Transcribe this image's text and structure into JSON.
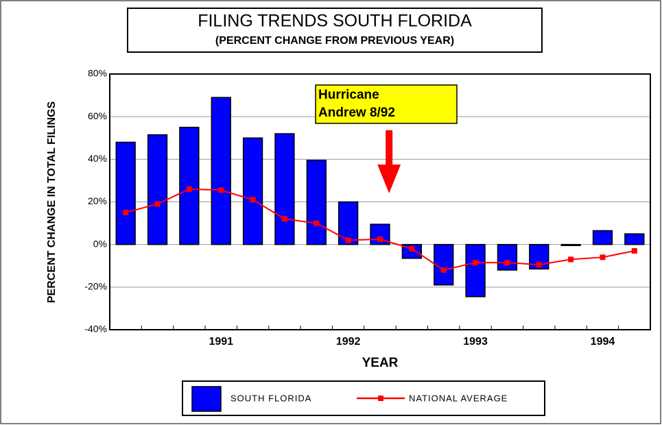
{
  "chart_data": {
    "type": "bar",
    "title": "FILING TRENDS   SOUTH FLORIDA",
    "subtitle": "(PERCENT CHANGE FROM PREVIOUS YEAR)",
    "y_label": "PERCENT CHANGE IN TOTAL FILINGS",
    "x_label": "YEAR",
    "annotation": {
      "lines": [
        "Hurricane",
        "Andrew  8/92"
      ],
      "category_index": 9
    },
    "categories": [
      null,
      null,
      null,
      "1991",
      null,
      null,
      null,
      "1992",
      null,
      null,
      null,
      "1993",
      null,
      null,
      null,
      "1994",
      null
    ],
    "series": [
      {
        "name": "SOUTH FLORIDA",
        "type": "bar",
        "color": "#0000ff",
        "values": [
          48,
          51.5,
          55,
          69,
          50,
          52,
          39.5,
          20,
          9.5,
          -6.5,
          -19,
          -24.5,
          -12,
          -11.5,
          -0.5,
          6.5,
          5
        ]
      },
      {
        "name": "NATIONAL AVERAGE",
        "type": "line",
        "color": "#ff0000",
        "values": [
          15,
          19,
          26,
          25.5,
          21,
          12,
          10,
          2,
          2.5,
          -2,
          -12,
          -8.5,
          -8.5,
          -9.5,
          -7,
          -6,
          -3
        ]
      }
    ],
    "ylim": [
      -40,
      80
    ],
    "yticks": [
      {
        "value": -40,
        "label": "-40%"
      },
      {
        "value": -20,
        "label": "-20%"
      },
      {
        "value": 0,
        "label": "0%"
      },
      {
        "value": 20,
        "label": "20%"
      },
      {
        "value": 40,
        "label": "40%"
      },
      {
        "value": 60,
        "label": "60%"
      },
      {
        "value": 80,
        "label": "80%"
      }
    ],
    "grid": true
  }
}
